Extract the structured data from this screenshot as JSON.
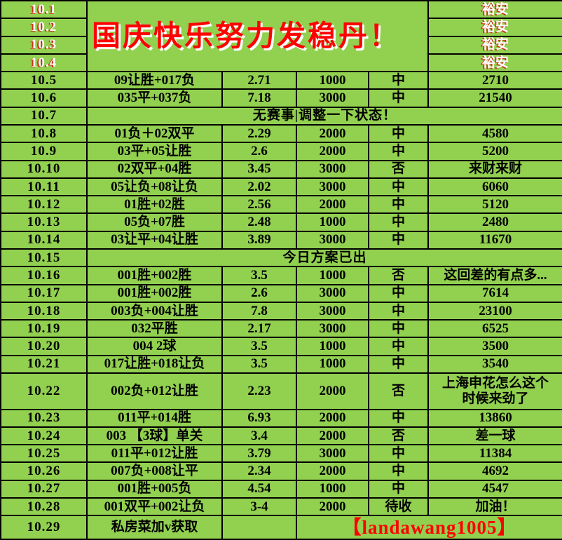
{
  "colors": {
    "background_green": "#92d050",
    "grid_black": "#000000",
    "text_black": "#000000",
    "accent_red": "#ff0000",
    "header_text_white": "#ffffff"
  },
  "header": {
    "dates": [
      "10.1",
      "10.2",
      "10.3",
      "10.4"
    ],
    "banner": "国庆快乐努力发稳丹！",
    "partner": "裕安"
  },
  "rows": [
    {
      "date": "10.5",
      "bet": "09让胜+017负",
      "odds": "2.71",
      "stake": "1000",
      "result": "中",
      "note": "2710"
    },
    {
      "date": "10.6",
      "bet": "035平+037负",
      "odds": "7.18",
      "stake": "3000",
      "result": "中",
      "note": "21540"
    },
    {
      "date": "10.7",
      "message": "无赛事|调整一下状态！"
    },
    {
      "date": "10.8",
      "bet": "01负＋02双平",
      "odds": "2.29",
      "stake": "2000",
      "result": "中",
      "note": "4580"
    },
    {
      "date": "10.9",
      "bet": "03平+05让胜",
      "odds": "2.6",
      "stake": "2000",
      "result": "中",
      "note": "5200"
    },
    {
      "date": "10.10",
      "bet": "02双平+04胜",
      "odds": "3.45",
      "stake": "3000",
      "result": "否",
      "note": "来财来财"
    },
    {
      "date": "10.11",
      "bet": "05让负+08让负",
      "odds": "2.02",
      "stake": "3000",
      "result": "中",
      "note": "6060"
    },
    {
      "date": "10.12",
      "bet": "01胜+02胜",
      "odds": "2.56",
      "stake": "2000",
      "result": "中",
      "note": "5120"
    },
    {
      "date": "10.13",
      "bet": "05负+07胜",
      "odds": "2.48",
      "stake": "1000",
      "result": "中",
      "note": "2480"
    },
    {
      "date": "10.14",
      "bet": "03让平+04让胜",
      "odds": "3.89",
      "stake": "3000",
      "result": "中",
      "note": "11670"
    },
    {
      "date": "10.15",
      "message": "今日方案已出"
    },
    {
      "date": "10.16",
      "bet": "001胜+002胜",
      "odds": "3.5",
      "stake": "1000",
      "result": "否",
      "note": "这回差的有点多..."
    },
    {
      "date": "10.17",
      "bet": "001胜+002胜",
      "odds": "2.6",
      "stake": "3000",
      "result": "中",
      "note": "7614"
    },
    {
      "date": "10.18",
      "bet": "003负+004让胜",
      "odds": "7.8",
      "stake": "3000",
      "result": "中",
      "note": "23100"
    },
    {
      "date": "10.19",
      "bet": "032平胜",
      "odds": "2.17",
      "stake": "3000",
      "result": "中",
      "note": "6525"
    },
    {
      "date": "10.20",
      "bet": "004 2球",
      "odds": "3.5",
      "stake": "1000",
      "result": "中",
      "note": "3500"
    },
    {
      "date": "10.21",
      "bet": "017让胜+018让负",
      "odds": "3.5",
      "stake": "1000",
      "result": "中",
      "note": "3540"
    },
    {
      "date": "10.22",
      "bet": "002负+012让胜",
      "odds": "2.23",
      "stake": "2000",
      "result": "否",
      "note": "上海申花怎么这个\n时候来劲了",
      "tall": true
    },
    {
      "date": "10.23",
      "bet": "011平+014胜",
      "odds": "6.93",
      "stake": "2000",
      "result": "中",
      "note": "13860"
    },
    {
      "date": "10.24",
      "bet": "003 【3球】单关",
      "odds": "3.4",
      "stake": "2000",
      "result": "否",
      "note": "差一球"
    },
    {
      "date": "10.25",
      "bet": "011平+012让胜",
      "odds": "3.79",
      "stake": "3000",
      "result": "中",
      "note": "11384"
    },
    {
      "date": "10.26",
      "bet": "007负+008让平",
      "odds": "2.34",
      "stake": "2000",
      "result": "中",
      "note": "4692"
    },
    {
      "date": "10.27",
      "bet": "001胜+005负",
      "odds": "4.54",
      "stake": "1000",
      "result": "中",
      "note": "4547"
    },
    {
      "date": "10.28",
      "bet": "001双平+002让负",
      "odds": "3-4",
      "stake": "2000",
      "result": "待收",
      "note": "加油！"
    },
    {
      "date": "10.29",
      "bet": "私房菜加v获取",
      "signature": "【landawang1005】"
    }
  ]
}
